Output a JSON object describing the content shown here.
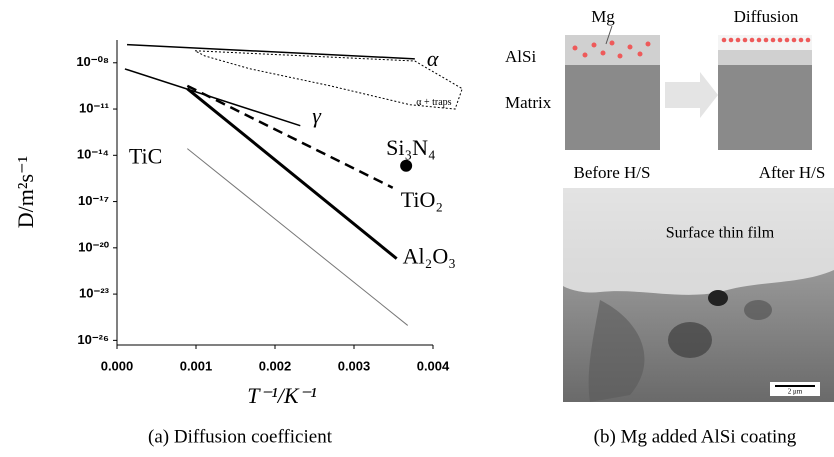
{
  "chart_data": {
    "type": "line",
    "caption": "(a) Diffusion coefficient",
    "xlabel": "T⁻¹/K⁻¹",
    "ylabel": "D/m²s⁻¹",
    "xlim": [
      0,
      0.004
    ],
    "ylim": [
      5e-27,
      3e-07
    ],
    "ylog": true,
    "xticks": [
      {
        "value": 0,
        "label": "0.000"
      },
      {
        "value": 0.001,
        "label": "0.001"
      },
      {
        "value": 0.002,
        "label": "0.002"
      },
      {
        "value": 0.003,
        "label": "0.003"
      },
      {
        "value": 0.004,
        "label": "0.004"
      }
    ],
    "yticks": [
      {
        "value": 1e-08,
        "label": "10⁻⁰⁸"
      },
      {
        "value": 1e-11,
        "label": "10⁻¹¹"
      },
      {
        "value": 1e-14,
        "label": "10⁻¹⁴"
      },
      {
        "value": 1e-17,
        "label": "10⁻¹⁷"
      },
      {
        "value": 1e-20,
        "label": "10⁻²⁰"
      },
      {
        "value": 1e-23,
        "label": "10⁻²³"
      },
      {
        "value": 1e-26,
        "label": "10⁻²⁶"
      }
    ],
    "series": [
      {
        "name": "α",
        "color": "#000000",
        "style": "solid",
        "width": 1.5,
        "x": [
          0.000127,
          0.00377
        ],
        "values": [
          1.5e-07,
          1.8e-08
        ]
      },
      {
        "name": "α + traps",
        "color": "#000000",
        "style": "dotted",
        "width": 1,
        "closed": true,
        "x": [
          0.000987,
          0.00377,
          0.00437,
          0.00428,
          0.00371,
          0.0027,
          0.00168,
          0.00111
        ],
        "values": [
          6e-08,
          1.3e-08,
          2.1e-10,
          1e-11,
          1.9e-11,
          3.2e-10,
          4.1e-09,
          2.8e-08
        ]
      },
      {
        "name": "γ",
        "color": "#000000",
        "style": "solid",
        "width": 1.5,
        "x": [
          0.0001,
          0.00232
        ],
        "values": [
          4e-09,
          8.3e-13
        ]
      },
      {
        "name": "TiO₂",
        "color": "#000000",
        "style": "dashed",
        "width": 2.5,
        "x": [
          0.00089,
          0.00349
        ],
        "values": [
          3.2e-10,
          7.9e-17
        ]
      },
      {
        "name": "Al₂O₃",
        "color": "#000000",
        "style": "solid",
        "width": 3,
        "x": [
          0.00089,
          0.00354
        ],
        "values": [
          2.1e-10,
          2e-21
        ]
      },
      {
        "name": "TiC",
        "color": "#777777",
        "style": "solid",
        "width": 1,
        "x": [
          0.00089,
          0.00368
        ],
        "values": [
          2.7e-14,
          9.3e-26
        ]
      },
      {
        "name": "Si₃N₄",
        "color": "#000000",
        "style": "point",
        "x": [
          0.00366
        ],
        "values": [
          2.1e-15
        ]
      }
    ]
  },
  "panel_b": {
    "caption": "(b) Mg added AlSi coating",
    "mg": "Mg",
    "diffusion": "Diffusion",
    "alsi": "AlSi",
    "matrix": "Matrix",
    "before": "Before H/S",
    "after": "After H/S",
    "film": "Surface thin film",
    "scale": "2 μm"
  }
}
